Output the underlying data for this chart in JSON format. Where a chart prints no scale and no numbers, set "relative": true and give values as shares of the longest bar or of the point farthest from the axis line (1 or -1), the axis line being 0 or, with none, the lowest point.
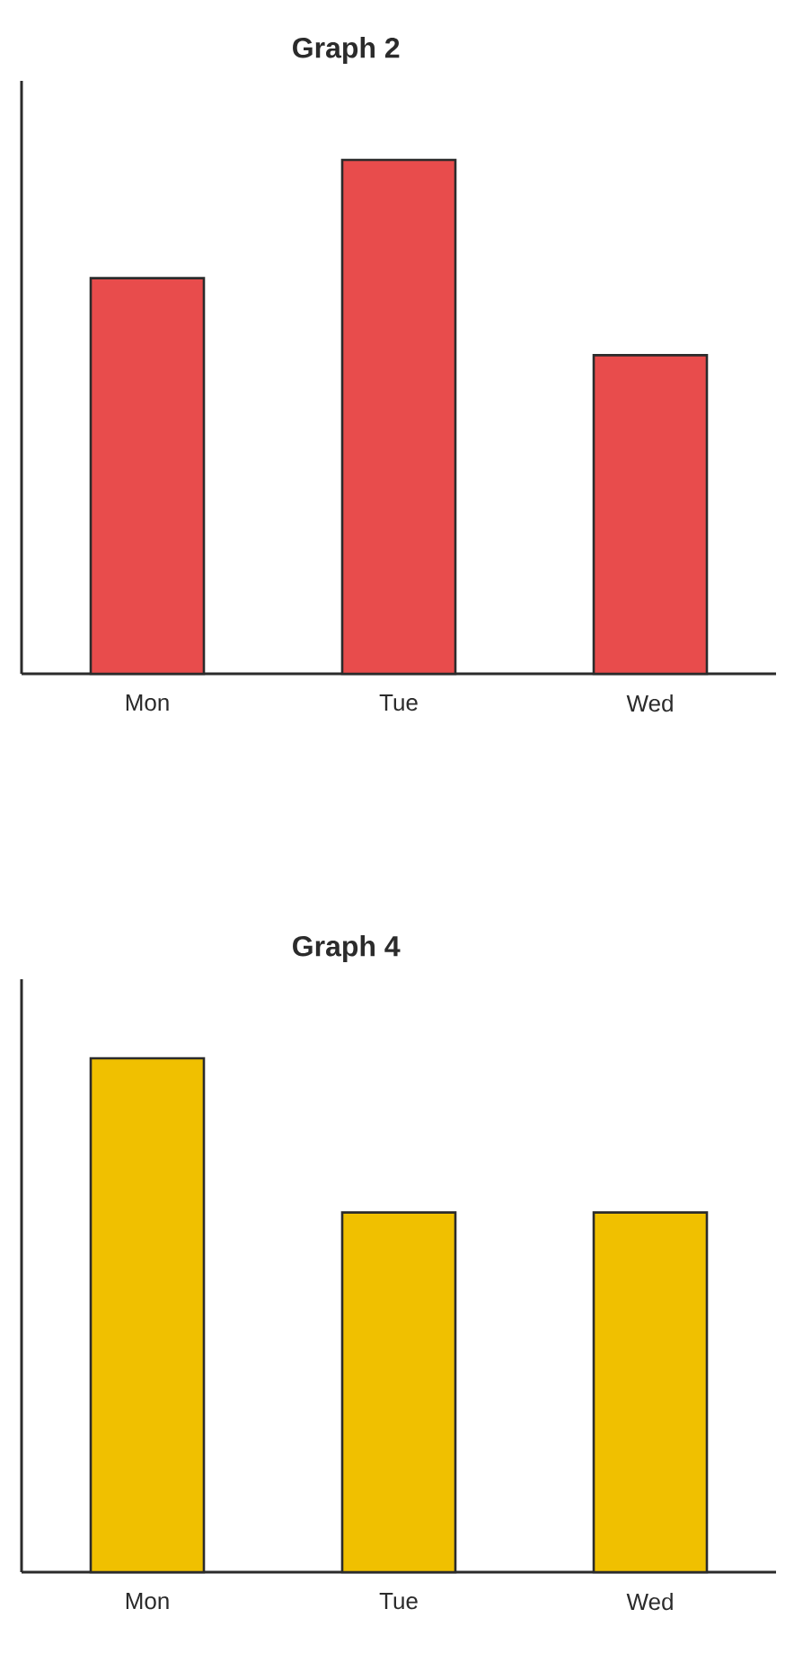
{
  "chart_data": [
    {
      "type": "bar",
      "title": "Graph 2",
      "categories": [
        "Mon",
        "Tue",
        "Wed"
      ],
      "values": [
        0.77,
        1,
        0.62
      ],
      "relative": true,
      "color": "#e84c4c"
    },
    {
      "type": "bar",
      "title": "Graph 4",
      "categories": [
        "Mon",
        "Tue",
        "Wed"
      ],
      "values": [
        1,
        0.7,
        0.7
      ],
      "relative": true,
      "color": "#f0c000"
    }
  ]
}
